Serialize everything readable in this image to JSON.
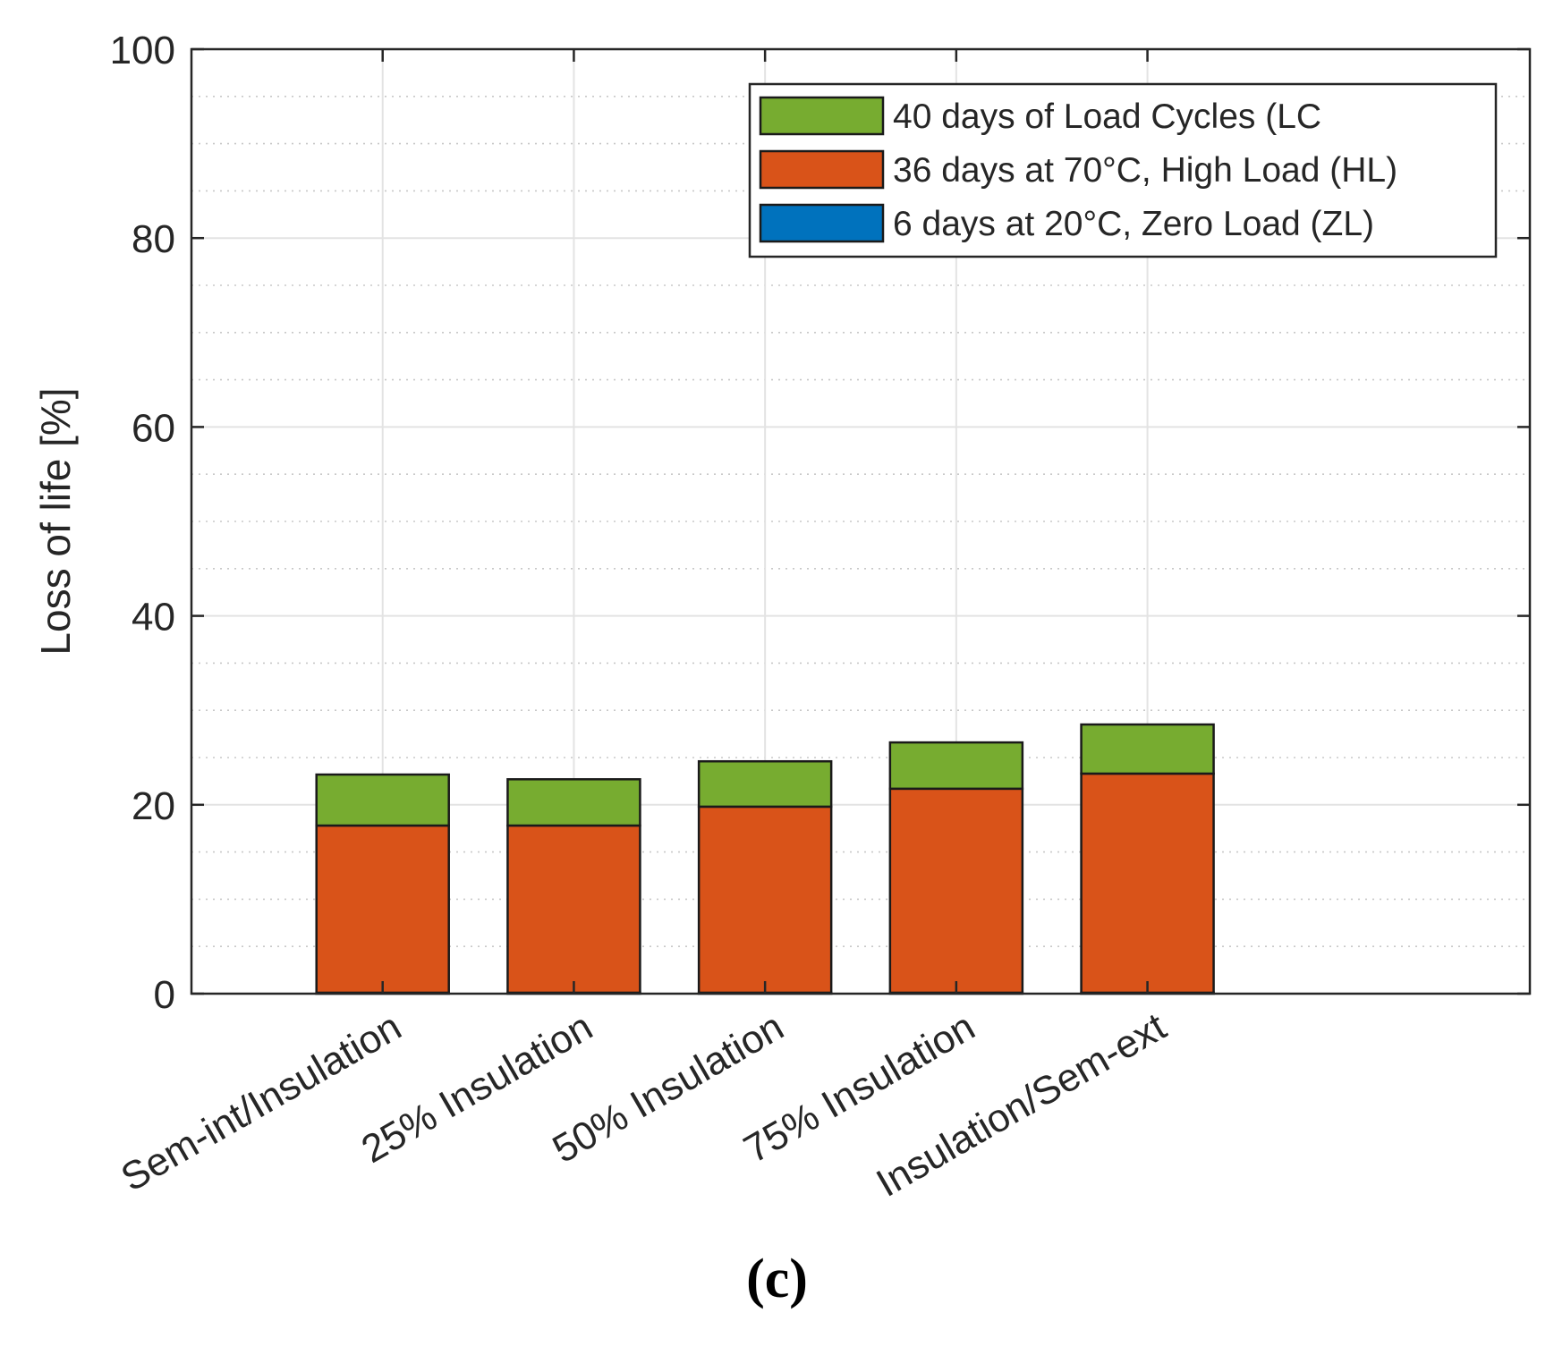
{
  "chart_data": {
    "type": "bar",
    "stacked": true,
    "categories": [
      "Sem-int/Insulation",
      "25% Insulation",
      "50% Insulation",
      "75% Insulation",
      "Insulation/Sem-ext"
    ],
    "series": [
      {
        "name": "6 days at 20°C, Zero Load (ZL)",
        "color": "#0072BD",
        "values": [
          0.1,
          0.1,
          0.1,
          0.1,
          0.1
        ]
      },
      {
        "name": "36 days at 70°C, High Load (HL)",
        "color": "#D95319",
        "values": [
          17.7,
          17.7,
          19.7,
          21.6,
          23.2
        ]
      },
      {
        "name": "40 days of Load Cycles (LC",
        "color": "#77AC30",
        "values": [
          5.4,
          4.9,
          4.8,
          4.9,
          5.2
        ]
      }
    ],
    "legend_order": [
      2,
      1,
      0
    ],
    "legend_position": "top-right",
    "ylabel": "Loss of life [%]",
    "xlabel": "",
    "ylim": [
      0,
      100
    ],
    "yticks": [
      "0",
      "20",
      "40",
      "60",
      "80",
      "100"
    ],
    "minor_grid": true,
    "grid": true
  },
  "panel_label": "(c)"
}
